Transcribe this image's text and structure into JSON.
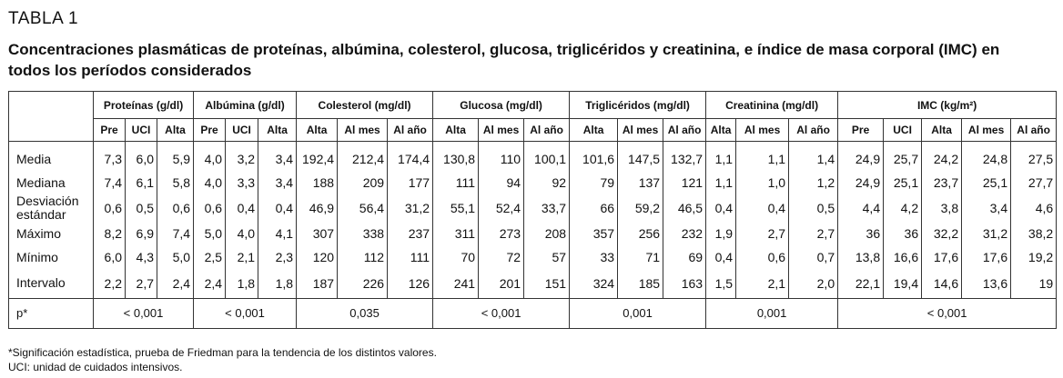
{
  "header": {
    "label": "TABLA 1",
    "title": "Concentraciones plasmáticas de proteínas, albúmina, colesterol, glucosa, triglicéridos y creatinina, e índice de masa corporal (IMC) en todos los períodos considerados"
  },
  "table": {
    "groups": [
      {
        "name": "Proteínas (g/dl)",
        "columns": [
          "Pre",
          "UCI",
          "Alta"
        ],
        "p": "< 0,001"
      },
      {
        "name": "Albúmina (g/dl)",
        "columns": [
          "Pre",
          "UCI",
          "Alta"
        ],
        "p": "< 0,001"
      },
      {
        "name": "Colesterol (mg/dl)",
        "columns": [
          "Alta",
          "Al mes",
          "Al año"
        ],
        "p": "0,035"
      },
      {
        "name": "Glucosa (mg/dl)",
        "columns": [
          "Alta",
          "Al mes",
          "Al año"
        ],
        "p": "< 0,001"
      },
      {
        "name": "Triglicéridos (mg/dl)",
        "columns": [
          "Alta",
          "Al mes",
          "Al año"
        ],
        "p": "0,001"
      },
      {
        "name": "Creatinina (mg/dl)",
        "columns": [
          "Alta",
          "Al mes",
          "Al año"
        ],
        "p": "0,001"
      },
      {
        "name": "IMC (kg/m²)",
        "columns": [
          "Pre",
          "UCI",
          "Alta",
          "Al mes",
          "Al año"
        ],
        "p": "< 0,001"
      }
    ],
    "rows": [
      {
        "label": "Media",
        "values": [
          "7,3",
          "6,0",
          "5,9",
          "4,0",
          "3,2",
          "3,4",
          "192,4",
          "212,4",
          "174,4",
          "130,8",
          "110",
          "100,1",
          "101,6",
          "147,5",
          "132,7",
          "1,1",
          "1,1",
          "1,4",
          "24,9",
          "25,7",
          "24,2",
          "24,8",
          "27,5"
        ]
      },
      {
        "label": "Mediana",
        "values": [
          "7,4",
          "6,1",
          "5,8",
          "4,0",
          "3,3",
          "3,4",
          "188",
          "209",
          "177",
          "111",
          "94",
          "92",
          "79",
          "137",
          "121",
          "1,1",
          "1,0",
          "1,2",
          "24,9",
          "25,1",
          "23,7",
          "25,1",
          "27,7"
        ]
      },
      {
        "label": "Desviación estándar",
        "values": [
          "0,6",
          "0,5",
          "0,6",
          "0,6",
          "0,4",
          "0,4",
          "46,9",
          "56,4",
          "31,2",
          "55,1",
          "52,4",
          "33,7",
          "66",
          "59,2",
          "46,5",
          "0,4",
          "0,4",
          "0,5",
          "4,4",
          "4,2",
          "3,8",
          "3,4",
          "4,6"
        ]
      },
      {
        "label": "Máximo",
        "values": [
          "8,2",
          "6,9",
          "7,4",
          "5,0",
          "4,0",
          "4,1",
          "307",
          "338",
          "237",
          "311",
          "273",
          "208",
          "357",
          "256",
          "232",
          "1,9",
          "2,7",
          "2,7",
          "36",
          "36",
          "32,2",
          "31,2",
          "38,2"
        ]
      },
      {
        "label": "Mínimo",
        "values": [
          "6,0",
          "4,3",
          "5,0",
          "2,5",
          "2,1",
          "2,3",
          "120",
          "112",
          "111",
          "70",
          "72",
          "57",
          "33",
          "71",
          "69",
          "0,4",
          "0,6",
          "0,7",
          "13,8",
          "16,6",
          "17,6",
          "17,6",
          "19,2"
        ]
      },
      {
        "label": "Intervalo",
        "values": [
          "2,2",
          "2,7",
          "2,4",
          "2,4",
          "1,8",
          "1,8",
          "187",
          "226",
          "126",
          "241",
          "201",
          "151",
          "324",
          "185",
          "163",
          "1,5",
          "2,1",
          "2,0",
          "22,1",
          "19,4",
          "14,6",
          "13,6",
          "19"
        ]
      }
    ],
    "p_label": "p*"
  },
  "footnotes": [
    "*Significación estadística, prueba de Friedman para la tendencia de los distintos valores.",
    "UCI: unidad de cuidados intensivos."
  ]
}
